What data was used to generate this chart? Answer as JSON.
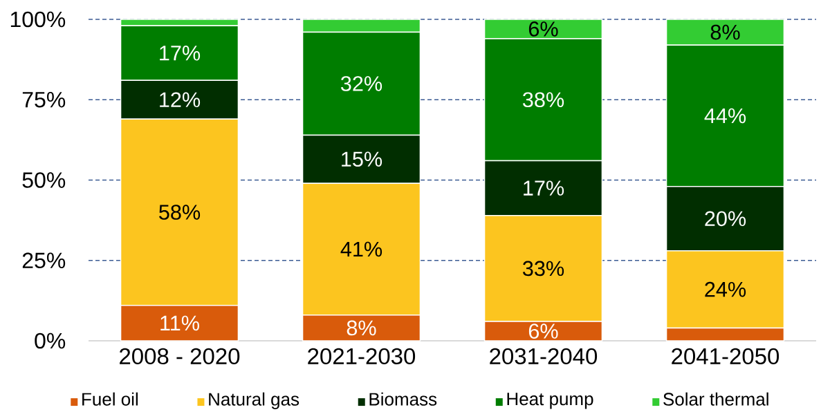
{
  "chart_data": {
    "type": "bar",
    "stacked": true,
    "categories": [
      "2008 - 2020",
      "2021-2030",
      "2031-2040",
      "2041-2050"
    ],
    "series": [
      {
        "name": "Fuel oil",
        "color": "#d95b0b",
        "values": [
          11,
          8,
          6,
          4
        ],
        "value_labels": [
          "11%",
          "8%",
          "6%",
          null
        ]
      },
      {
        "name": "Natural gas",
        "color": "#fcc51f",
        "values": [
          58,
          41,
          33,
          24
        ],
        "value_labels": [
          "58%",
          "41%",
          "33%",
          "24%"
        ]
      },
      {
        "name": "Biomass",
        "color": "#012e00",
        "values": [
          12,
          15,
          17,
          20
        ],
        "value_labels": [
          "12%",
          "15%",
          "17%",
          "20%"
        ]
      },
      {
        "name": "Heat pump",
        "color": "#007d00",
        "values": [
          17,
          32,
          38,
          44
        ],
        "value_labels": [
          "17%",
          "32%",
          "38%",
          "44%"
        ]
      },
      {
        "name": "Solar thermal",
        "color": "#33cc33",
        "values": [
          2,
          4,
          6,
          8
        ],
        "value_labels": [
          null,
          null,
          "6%",
          "8%"
        ]
      }
    ],
    "ylim": [
      0,
      100
    ],
    "yticks": [
      {
        "value": 0,
        "label": "0%"
      },
      {
        "value": 25,
        "label": "25%"
      },
      {
        "value": 50,
        "label": "50%"
      },
      {
        "value": 75,
        "label": "75%"
      },
      {
        "value": 100,
        "label": "100%"
      }
    ],
    "grid": "y",
    "legend": "bottom"
  }
}
